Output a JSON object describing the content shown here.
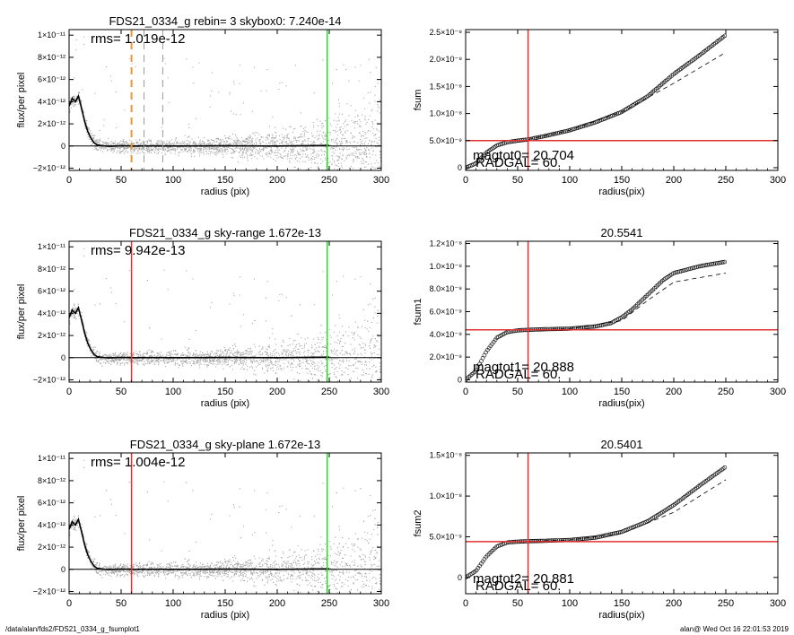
{
  "footer": {
    "path": "/data/alan/fds2/FDS21_0334_g_fsumplot1",
    "user_stamp": "alan@  Wed Oct 16 22:01:53 2019"
  },
  "colors": {
    "scatter": "#a8a8a8",
    "profile": "#000000",
    "red_marker": "#e03030",
    "green_marker": "#22dd22",
    "orange_marker": "#e8953a",
    "gray_dashed": "#999999"
  },
  "chart_data": [
    {
      "type": "scatter",
      "title": "FDS21_0334_g rebin= 3    skybox0:  7.240e-14",
      "annotation": "rms= 1.019e-12",
      "xlabel": "radius (pix)",
      "ylabel": "flux/per pixel",
      "xlim": [
        0,
        300
      ],
      "ylim": [
        -2.2e-12,
        1.05e-11
      ],
      "xticks": [
        0,
        50,
        100,
        150,
        200,
        250,
        300
      ],
      "xtick_labels": [
        "0",
        "50",
        "100",
        "150",
        "200",
        "250",
        "300"
      ],
      "yticks": [
        -2e-12,
        0,
        2e-12,
        4e-12,
        6e-12,
        8e-12,
        1e-11
      ],
      "ytick_labels": [
        "−2×10⁻¹²",
        "0",
        "2×10⁻¹²",
        "4×10⁻¹²",
        "6×10⁻¹²",
        "8×10⁻¹²",
        "1×10⁻¹¹"
      ],
      "profile": {
        "x": [
          0,
          3,
          6,
          9,
          12,
          15,
          18,
          21,
          24,
          27,
          30,
          35,
          40,
          50,
          60,
          80,
          100,
          150,
          200,
          250
        ],
        "y": [
          3.6e-12,
          4.3e-12,
          4e-12,
          4.5e-12,
          3.4e-12,
          2.2e-12,
          1.3e-12,
          7e-13,
          3e-13,
          1e-13,
          5e-14,
          0,
          -2e-14,
          3e-14,
          0,
          1e-14,
          0,
          2e-14,
          0,
          5e-14
        ]
      },
      "vlines": [
        {
          "x": 60,
          "color": "#e8953a",
          "style": "dashed"
        },
        {
          "x": 72,
          "color": "#999999",
          "style": "dashed"
        },
        {
          "x": 90,
          "color": "#999999",
          "style": "dashed"
        },
        {
          "x": 248,
          "color": "#22dd22",
          "style": "solid"
        }
      ],
      "grid": false
    },
    {
      "type": "scatter",
      "title": "",
      "annotation_lines": [
        "magtot0=  20.704",
        "RADGAL=     60."
      ],
      "xlabel": "radius(pix)",
      "ylabel": "fsum",
      "xlim": [
        0,
        300
      ],
      "ylim": [
        -5e-10,
        2.55e-08
      ],
      "xticks": [
        0,
        50,
        100,
        150,
        200,
        250,
        300
      ],
      "xtick_labels": [
        "0",
        "50",
        "100",
        "150",
        "200",
        "250",
        "300"
      ],
      "yticks": [
        0,
        5e-09,
        1e-08,
        1.5e-08,
        2e-08,
        2.5e-08
      ],
      "ytick_labels": [
        "0",
        "5.0×10⁻⁹",
        "1.0×10⁻⁸",
        "1.5×10⁻⁸",
        "2.0×10⁻⁸",
        "2.5×10⁻⁸"
      ],
      "curve": {
        "x": [
          0,
          10,
          20,
          30,
          40,
          50,
          60,
          75,
          100,
          125,
          150,
          175,
          200,
          225,
          250
        ],
        "y": [
          0,
          8e-10,
          2.8e-09,
          4.1e-09,
          4.7e-09,
          5e-09,
          5.2e-09,
          5.8e-09,
          6.9e-09,
          8.4e-09,
          1.03e-08,
          1.32e-08,
          1.73e-08,
          2.08e-08,
          2.45e-08
        ]
      },
      "dashed_curve": {
        "x": [
          60,
          100,
          150,
          200,
          250
        ],
        "y": [
          5.2e-09,
          6.9e-09,
          1.03e-08,
          1.56e-08,
          2.13e-08
        ]
      },
      "vline": {
        "x": 60,
        "color": "#e03030"
      },
      "hline": {
        "y": 5e-09,
        "color": "#e03030"
      },
      "grid": false
    },
    {
      "type": "scatter",
      "title": "FDS21_0334_g sky-range  1.672e-13",
      "annotation": "rms= 9.942e-13",
      "xlabel": "radius (pix)",
      "ylabel": "flux/per pixel",
      "xlim": [
        0,
        300
      ],
      "ylim": [
        -2.2e-12,
        1.05e-11
      ],
      "xticks": [
        0,
        50,
        100,
        150,
        200,
        250,
        300
      ],
      "xtick_labels": [
        "0",
        "50",
        "100",
        "150",
        "200",
        "250",
        "300"
      ],
      "yticks": [
        -2e-12,
        0,
        2e-12,
        4e-12,
        6e-12,
        8e-12,
        1e-11
      ],
      "ytick_labels": [
        "−2×10⁻¹²",
        "0",
        "2×10⁻¹²",
        "4×10⁻¹²",
        "6×10⁻¹²",
        "8×10⁻¹²",
        "1×10⁻¹¹"
      ],
      "profile": {
        "x": [
          0,
          3,
          6,
          9,
          12,
          15,
          18,
          21,
          24,
          27,
          30,
          35,
          40,
          50,
          60,
          80,
          100,
          150,
          200,
          250
        ],
        "y": [
          3.6e-12,
          4.3e-12,
          4e-12,
          4.5e-12,
          3.4e-12,
          2.2e-12,
          1.3e-12,
          7e-13,
          3e-13,
          1e-13,
          5e-14,
          0,
          -2e-14,
          3e-14,
          0,
          1e-14,
          0,
          2e-14,
          0,
          5e-14
        ]
      },
      "vlines": [
        {
          "x": 60,
          "color": "#e03030",
          "style": "solid"
        },
        {
          "x": 248,
          "color": "#22dd22",
          "style": "solid"
        }
      ],
      "grid": false
    },
    {
      "type": "scatter",
      "title": "20.5541",
      "annotation_lines": [
        "magtot1=  20.888",
        "RADGAL=     60."
      ],
      "xlabel": "radius(pix)",
      "ylabel": "fsum1",
      "xlim": [
        0,
        300
      ],
      "ylim": [
        -2e-10,
        1.22e-08
      ],
      "xticks": [
        0,
        50,
        100,
        150,
        200,
        250,
        300
      ],
      "xtick_labels": [
        "0",
        "50",
        "100",
        "150",
        "200",
        "250",
        "300"
      ],
      "yticks": [
        0,
        2e-09,
        4e-09,
        6e-09,
        8e-09,
        1e-08,
        1.2e-08
      ],
      "ytick_labels": [
        "0",
        "2.0×10⁻⁹",
        "4.0×10⁻⁹",
        "6.0×10⁻⁹",
        "8.0×10⁻⁹",
        "1.0×10⁻⁸",
        "1.2×10⁻⁸"
      ],
      "curve": {
        "x": [
          0,
          10,
          20,
          30,
          40,
          50,
          60,
          75,
          100,
          125,
          140,
          150,
          160,
          175,
          190,
          200,
          225,
          250
        ],
        "y": [
          0,
          8e-10,
          2.5e-09,
          3.7e-09,
          4.2e-09,
          4.35e-09,
          4.4e-09,
          4.45e-09,
          4.5e-09,
          4.7e-09,
          5e-09,
          5.5e-09,
          6.2e-09,
          7.5e-09,
          8.8e-09,
          9.4e-09,
          1e-08,
          1.04e-08
        ]
      },
      "dashed_curve": {
        "x": [
          60,
          100,
          150,
          175,
          200,
          225,
          250
        ],
        "y": [
          4.4e-09,
          4.5e-09,
          5.2e-09,
          7e-09,
          8.6e-09,
          9e-09,
          9.4e-09
        ]
      },
      "vline": {
        "x": 60,
        "color": "#e03030"
      },
      "hline": {
        "y": 4.4e-09,
        "color": "#e03030"
      },
      "grid": false
    },
    {
      "type": "scatter",
      "title": "FDS21_0334_g sky-plane  1.672e-13",
      "annotation": "rms= 1.004e-12",
      "xlabel": "radius (pix)",
      "ylabel": "flux/per pixel",
      "xlim": [
        0,
        300
      ],
      "ylim": [
        -2.2e-12,
        1.05e-11
      ],
      "xticks": [
        0,
        50,
        100,
        150,
        200,
        250,
        300
      ],
      "xtick_labels": [
        "0",
        "50",
        "100",
        "150",
        "200",
        "250",
        "300"
      ],
      "yticks": [
        -2e-12,
        0,
        2e-12,
        4e-12,
        6e-12,
        8e-12,
        1e-11
      ],
      "ytick_labels": [
        "−2×10⁻¹²",
        "0",
        "2×10⁻¹²",
        "4×10⁻¹²",
        "6×10⁻¹²",
        "8×10⁻¹²",
        "1×10⁻¹¹"
      ],
      "profile": {
        "x": [
          0,
          3,
          6,
          9,
          12,
          15,
          18,
          21,
          24,
          27,
          30,
          35,
          40,
          50,
          60,
          80,
          100,
          150,
          200,
          250
        ],
        "y": [
          3.6e-12,
          4.3e-12,
          4e-12,
          4.5e-12,
          3.4e-12,
          2.2e-12,
          1.3e-12,
          7e-13,
          3e-13,
          1e-13,
          5e-14,
          0,
          -2e-14,
          3e-14,
          0,
          1e-14,
          0,
          2e-14,
          0,
          5e-14
        ]
      },
      "vlines": [
        {
          "x": 60,
          "color": "#e03030",
          "style": "solid"
        },
        {
          "x": 248,
          "color": "#22dd22",
          "style": "solid"
        }
      ],
      "grid": false
    },
    {
      "type": "scatter",
      "title": "20.5401",
      "annotation_lines": [
        "magtot2=  20.881",
        "RADGAL=     60."
      ],
      "xlabel": "radius(pix)",
      "ylabel": "fsum2",
      "xlim": [
        0,
        300
      ],
      "ylim": [
        -2e-09,
        1.53e-08
      ],
      "xticks": [
        0,
        50,
        100,
        150,
        200,
        250,
        300
      ],
      "xtick_labels": [
        "0",
        "50",
        "100",
        "150",
        "200",
        "250",
        "300"
      ],
      "yticks": [
        0,
        5e-09,
        1e-08,
        1.5e-08
      ],
      "ytick_labels": [
        "0",
        "5.0×10⁻⁹",
        "1.0×10⁻⁸",
        "1.5×10⁻⁸"
      ],
      "curve": {
        "x": [
          0,
          10,
          20,
          30,
          40,
          50,
          60,
          75,
          100,
          125,
          150,
          175,
          200,
          225,
          250
        ],
        "y": [
          0,
          8e-10,
          2.6e-09,
          3.8e-09,
          4.3e-09,
          4.4e-09,
          4.45e-09,
          4.5e-09,
          4.6e-09,
          4.9e-09,
          5.6e-09,
          6.9e-09,
          8.9e-09,
          1.13e-08,
          1.36e-08
        ]
      },
      "dashed_curve": {
        "x": [
          60,
          100,
          150,
          200,
          250
        ],
        "y": [
          4.45e-09,
          4.6e-09,
          5.4e-09,
          8e-09,
          1.2e-08
        ]
      },
      "vline": {
        "x": 60,
        "color": "#e03030"
      },
      "hline": {
        "y": 4.4e-09,
        "color": "#e03030"
      },
      "grid": false
    }
  ]
}
